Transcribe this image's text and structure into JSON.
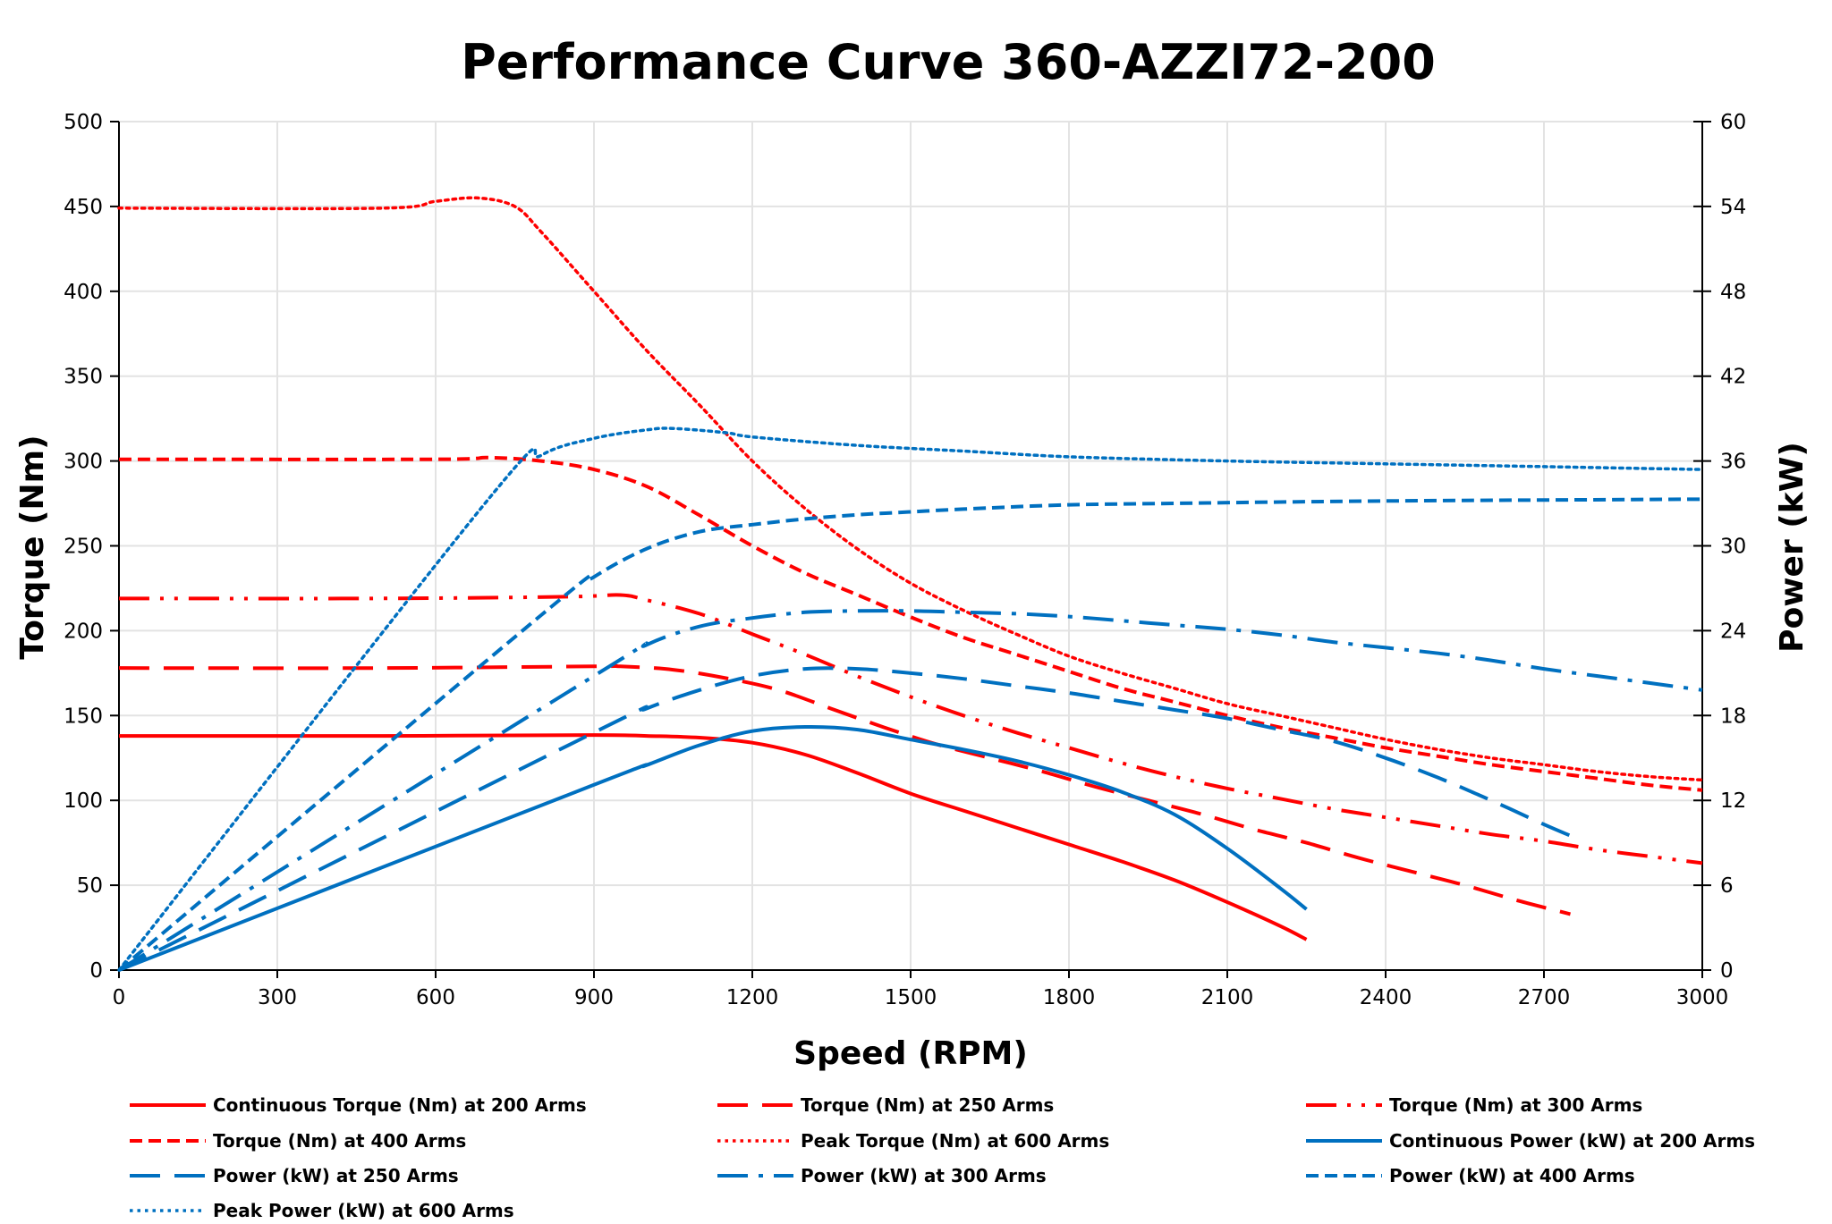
{
  "chart_data": {
    "type": "line",
    "title": "Performance Curve 360-AZZI72-200",
    "xlabel": "Speed (RPM)",
    "ylabel": "Torque (Nm)",
    "y2label": "Power (kW)",
    "xlim": [
      0,
      3000
    ],
    "ylim": [
      0,
      500
    ],
    "y2lim": [
      0,
      60
    ],
    "xticks": [
      0,
      300,
      600,
      900,
      1200,
      1500,
      1800,
      2100,
      2400,
      2700,
      3000
    ],
    "yticks": [
      0,
      50,
      100,
      150,
      200,
      250,
      300,
      350,
      400,
      450,
      500
    ],
    "y2ticks": [
      0,
      6,
      12,
      18,
      24,
      30,
      36,
      42,
      48,
      54,
      60
    ],
    "grid": true,
    "legend_position": "bottom",
    "colors": {
      "torque": "#ff0000",
      "power": "#0070c0"
    },
    "series": [
      {
        "name": "Continuous Torque (Nm) at 200 Arms",
        "axis": "left",
        "color": "#ff0000",
        "style": "solid",
        "points": [
          [
            0,
            138
          ],
          [
            500,
            138
          ],
          [
            900,
            138.5
          ],
          [
            1000,
            138
          ],
          [
            1100,
            137
          ],
          [
            1200,
            134
          ],
          [
            1300,
            127
          ],
          [
            1400,
            116
          ],
          [
            1500,
            104
          ],
          [
            1600,
            94
          ],
          [
            1700,
            84
          ],
          [
            1800,
            74
          ],
          [
            1900,
            64
          ],
          [
            2000,
            53
          ],
          [
            2100,
            40
          ],
          [
            2200,
            26
          ],
          [
            2250,
            18
          ]
        ]
      },
      {
        "name": "Torque (Nm) at 250 Arms",
        "axis": "left",
        "color": "#ff0000",
        "style": "long-dash",
        "points": [
          [
            0,
            178
          ],
          [
            500,
            178
          ],
          [
            900,
            179
          ],
          [
            950,
            179
          ],
          [
            1050,
            177
          ],
          [
            1150,
            172
          ],
          [
            1250,
            165
          ],
          [
            1350,
            154
          ],
          [
            1450,
            143
          ],
          [
            1550,
            133
          ],
          [
            1650,
            125
          ],
          [
            1750,
            117
          ],
          [
            1850,
            108
          ],
          [
            1950,
            100
          ],
          [
            2050,
            92
          ],
          [
            2150,
            83
          ],
          [
            2250,
            75
          ],
          [
            2350,
            66
          ],
          [
            2450,
            58
          ],
          [
            2550,
            50
          ],
          [
            2650,
            41
          ],
          [
            2750,
            33
          ]
        ]
      },
      {
        "name": "Torque (Nm) at 300 Arms",
        "axis": "left",
        "color": "#ff0000",
        "style": "long-dash-dot-dot",
        "points": [
          [
            0,
            219
          ],
          [
            500,
            219
          ],
          [
            850,
            220
          ],
          [
            950,
            221
          ],
          [
            1000,
            218
          ],
          [
            1100,
            210
          ],
          [
            1200,
            198
          ],
          [
            1300,
            186
          ],
          [
            1400,
            173
          ],
          [
            1500,
            161
          ],
          [
            1600,
            150
          ],
          [
            1700,
            140
          ],
          [
            1800,
            131
          ],
          [
            1900,
            122
          ],
          [
            2000,
            114
          ],
          [
            2100,
            107
          ],
          [
            2200,
            101
          ],
          [
            2300,
            95
          ],
          [
            2400,
            90
          ],
          [
            2500,
            85
          ],
          [
            2600,
            80
          ],
          [
            2700,
            76
          ],
          [
            2800,
            71
          ],
          [
            2900,
            67
          ],
          [
            3000,
            63
          ]
        ]
      },
      {
        "name": "Torque (Nm) at 400 Arms",
        "axis": "left",
        "color": "#ff0000",
        "style": "dash",
        "points": [
          [
            0,
            301
          ],
          [
            600,
            301
          ],
          [
            700,
            302
          ],
          [
            800,
            300
          ],
          [
            900,
            295
          ],
          [
            1000,
            285
          ],
          [
            1100,
            268
          ],
          [
            1200,
            250
          ],
          [
            1300,
            234
          ],
          [
            1400,
            221
          ],
          [
            1500,
            208
          ],
          [
            1600,
            196
          ],
          [
            1700,
            186
          ],
          [
            1800,
            176
          ],
          [
            1900,
            166
          ],
          [
            2000,
            158
          ],
          [
            2100,
            150
          ],
          [
            2200,
            143
          ],
          [
            2300,
            137
          ],
          [
            2400,
            131
          ],
          [
            2500,
            126
          ],
          [
            2600,
            121
          ],
          [
            2700,
            117
          ],
          [
            2800,
            113
          ],
          [
            2900,
            109
          ],
          [
            3000,
            106
          ]
        ]
      },
      {
        "name": "Peak Torque (Nm) at 600 Arms",
        "axis": "left",
        "color": "#ff0000",
        "style": "dotted",
        "points": [
          [
            0,
            449
          ],
          [
            500,
            449
          ],
          [
            600,
            453
          ],
          [
            680,
            455
          ],
          [
            750,
            450
          ],
          [
            800,
            435
          ],
          [
            900,
            400
          ],
          [
            1000,
            365
          ],
          [
            1100,
            333
          ],
          [
            1200,
            300
          ],
          [
            1300,
            272
          ],
          [
            1400,
            248
          ],
          [
            1500,
            228
          ],
          [
            1600,
            212
          ],
          [
            1700,
            198
          ],
          [
            1800,
            185
          ],
          [
            1900,
            175
          ],
          [
            2000,
            166
          ],
          [
            2100,
            157
          ],
          [
            2200,
            150
          ],
          [
            2300,
            143
          ],
          [
            2400,
            136
          ],
          [
            2500,
            130
          ],
          [
            2600,
            125
          ],
          [
            2700,
            121
          ],
          [
            2800,
            117
          ],
          [
            2900,
            114
          ],
          [
            3000,
            112
          ]
        ]
      },
      {
        "name": "Continuous Power (kW) at 200 Arms",
        "axis": "right",
        "color": "#0070c0",
        "style": "solid",
        "points": [
          [
            0,
            0
          ],
          [
            900,
            13.1
          ],
          [
            1000,
            14.5
          ],
          [
            1100,
            15.9
          ],
          [
            1200,
            16.9
          ],
          [
            1300,
            17.2
          ],
          [
            1400,
            17.0
          ],
          [
            1500,
            16.3
          ],
          [
            1600,
            15.6
          ],
          [
            1700,
            14.8
          ],
          [
            1800,
            13.8
          ],
          [
            1900,
            12.6
          ],
          [
            2000,
            11.0
          ],
          [
            2100,
            8.6
          ],
          [
            2200,
            5.8
          ],
          [
            2250,
            4.3
          ]
        ]
      },
      {
        "name": "Power (kW) at 250 Arms",
        "axis": "right",
        "color": "#0070c0",
        "style": "long-dash",
        "points": [
          [
            0,
            0
          ],
          [
            900,
            16.8
          ],
          [
            1000,
            18.5
          ],
          [
            1100,
            19.8
          ],
          [
            1200,
            20.8
          ],
          [
            1300,
            21.3
          ],
          [
            1400,
            21.3
          ],
          [
            1500,
            21.0
          ],
          [
            1600,
            20.6
          ],
          [
            1700,
            20.1
          ],
          [
            1800,
            19.6
          ],
          [
            1900,
            19.0
          ],
          [
            2000,
            18.4
          ],
          [
            2100,
            17.8
          ],
          [
            2200,
            17.0
          ],
          [
            2300,
            16.2
          ],
          [
            2400,
            15.0
          ],
          [
            2500,
            13.6
          ],
          [
            2600,
            12.0
          ],
          [
            2700,
            10.3
          ],
          [
            2750,
            9.5
          ]
        ]
      },
      {
        "name": "Power (kW) at 300 Arms",
        "axis": "right",
        "color": "#0070c0",
        "style": "dash-dot",
        "points": [
          [
            0,
            0
          ],
          [
            900,
            20.8
          ],
          [
            1000,
            23.0
          ],
          [
            1100,
            24.3
          ],
          [
            1200,
            24.9
          ],
          [
            1300,
            25.3
          ],
          [
            1400,
            25.4
          ],
          [
            1500,
            25.4
          ],
          [
            1600,
            25.3
          ],
          [
            1700,
            25.2
          ],
          [
            1800,
            25.0
          ],
          [
            1900,
            24.7
          ],
          [
            2000,
            24.4
          ],
          [
            2100,
            24.1
          ],
          [
            2200,
            23.7
          ],
          [
            2300,
            23.2
          ],
          [
            2400,
            22.8
          ],
          [
            2500,
            22.4
          ],
          [
            2600,
            21.9
          ],
          [
            2700,
            21.3
          ],
          [
            2800,
            20.8
          ],
          [
            2900,
            20.3
          ],
          [
            3000,
            19.8
          ]
        ]
      },
      {
        "name": "Power (kW) at 400 Arms",
        "axis": "right",
        "color": "#0070c0",
        "style": "dash",
        "points": [
          [
            0,
            0
          ],
          [
            800,
            25.1
          ],
          [
            900,
            27.8
          ],
          [
            1000,
            29.8
          ],
          [
            1100,
            31.0
          ],
          [
            1200,
            31.5
          ],
          [
            1300,
            31.9
          ],
          [
            1400,
            32.2
          ],
          [
            1500,
            32.4
          ],
          [
            1600,
            32.6
          ],
          [
            1800,
            32.9
          ],
          [
            2000,
            33.0
          ],
          [
            2200,
            33.1
          ],
          [
            2500,
            33.2
          ],
          [
            3000,
            33.3
          ]
        ]
      },
      {
        "name": "Peak Power (kW) at 600 Arms",
        "axis": "right",
        "color": "#0070c0",
        "style": "dotted",
        "points": [
          [
            0,
            0
          ],
          [
            700,
            33.3
          ],
          [
            800,
            36.4
          ],
          [
            900,
            37.6
          ],
          [
            1000,
            38.2
          ],
          [
            1050,
            38.3
          ],
          [
            1150,
            38.0
          ],
          [
            1200,
            37.7
          ],
          [
            1400,
            37.1
          ],
          [
            1600,
            36.7
          ],
          [
            1800,
            36.3
          ],
          [
            2100,
            36.0
          ],
          [
            2400,
            35.8
          ],
          [
            2700,
            35.6
          ],
          [
            3000,
            35.4
          ]
        ]
      }
    ]
  }
}
